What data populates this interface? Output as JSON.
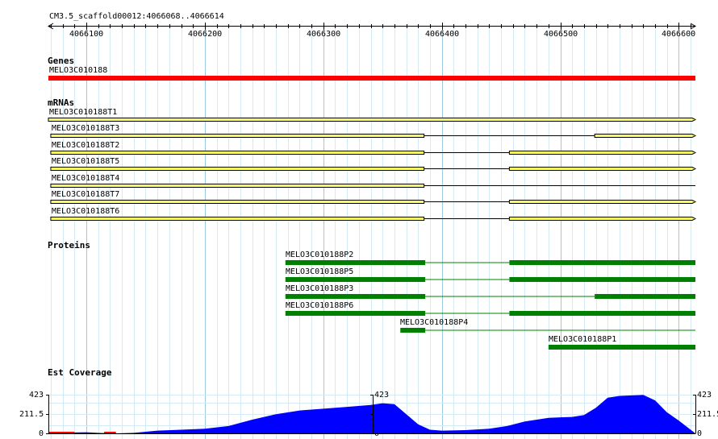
{
  "ruler": {
    "title": "CM3.5_scaffold00012:4066068..4066614",
    "start": 4066068,
    "end": 4066614,
    "ticks": [
      4066100,
      4066200,
      4066300,
      4066400,
      4066500,
      4066600
    ],
    "tick_labels": [
      "4066100",
      "4066200",
      "4066300",
      "4066400",
      "4066500",
      "4066600"
    ]
  },
  "tracks": {
    "genes": {
      "label": "Genes",
      "color": "#ff0000",
      "features": [
        {
          "name": "MELO3C010188",
          "start": 4066068,
          "end": 4066614
        }
      ]
    },
    "mrnas": {
      "label": "mRNAs",
      "fill": "#ffff66",
      "features": [
        {
          "name": "MELO3C010188T1",
          "exons": [
            [
              4066068,
              4066614
            ]
          ]
        },
        {
          "name": "MELO3C010188T3",
          "exons": [
            [
              4066070,
              4066385
            ],
            [
              4066529,
              4066614
            ]
          ]
        },
        {
          "name": "MELO3C010188T2",
          "exons": [
            [
              4066070,
              4066385
            ],
            [
              4066457,
              4066614
            ]
          ]
        },
        {
          "name": "MELO3C010188T5",
          "exons": [
            [
              4066070,
              4066385
            ],
            [
              4066457,
              4066614
            ]
          ]
        },
        {
          "name": "MELO3C010188T4",
          "exons": [
            [
              4066070,
              4066385
            ]
          ],
          "intron_to": 4066614
        },
        {
          "name": "MELO3C010188T7",
          "exons": [
            [
              4066070,
              4066385
            ],
            [
              4066457,
              4066614
            ]
          ]
        },
        {
          "name": "MELO3C010188T6",
          "exons": [
            [
              4066070,
              4066385
            ],
            [
              4066457,
              4066614
            ]
          ]
        }
      ]
    },
    "proteins": {
      "label": "Proteins",
      "color": "#008000",
      "features": [
        {
          "name": "MELO3C010188P2",
          "exons": [
            [
              4066268,
              4066386
            ],
            [
              4066457,
              4066614
            ]
          ]
        },
        {
          "name": "MELO3C010188P5",
          "exons": [
            [
              4066268,
              4066386
            ],
            [
              4066457,
              4066614
            ]
          ]
        },
        {
          "name": "MELO3C010188P3",
          "exons": [
            [
              4066268,
              4066386
            ],
            [
              4066529,
              4066614
            ]
          ]
        },
        {
          "name": "MELO3C010188P6",
          "exons": [
            [
              4066268,
              4066386
            ],
            [
              4066457,
              4066614
            ]
          ]
        },
        {
          "name": "MELO3C010188P4",
          "exons": [
            [
              4066365,
              4066386
            ]
          ],
          "intron_to": 4066614
        },
        {
          "name": "MELO3C010188P1",
          "exons": [
            [
              4066490,
              4066614
            ]
          ]
        }
      ]
    },
    "coverage": {
      "label": "Est Coverage",
      "color": "#0000ff",
      "low_color": "#ff0000",
      "y_max_label": "423",
      "y_mid_label": "211.5",
      "y_min_label": "0",
      "max": 423
    }
  },
  "chart_data": {
    "type": "area",
    "title": "Est Coverage",
    "xlabel": "",
    "ylabel": "",
    "ylim": [
      0,
      423
    ],
    "x": [
      4066068,
      4066090,
      4066100,
      4066110,
      4066125,
      4066140,
      4066160,
      4066180,
      4066200,
      4066220,
      4066240,
      4066260,
      4066280,
      4066300,
      4066320,
      4066340,
      4066350,
      4066360,
      4066370,
      4066380,
      4066390,
      4066400,
      4066420,
      4066440,
      4066455,
      4066470,
      4066490,
      4066500,
      4066510,
      4066520,
      4066530,
      4066540,
      4066550,
      4066560,
      4066570,
      4066580,
      4066590,
      4066600,
      4066608,
      4066614
    ],
    "series": [
      {
        "values": [
          0,
          10,
          12,
          5,
          0,
          5,
          30,
          40,
          50,
          80,
          150,
          210,
          250,
          270,
          290,
          310,
          330,
          320,
          210,
          100,
          40,
          30,
          35,
          50,
          80,
          130,
          170,
          175,
          180,
          200,
          280,
          390,
          410,
          415,
          420,
          360,
          230,
          140,
          60,
          0
        ]
      }
    ]
  }
}
